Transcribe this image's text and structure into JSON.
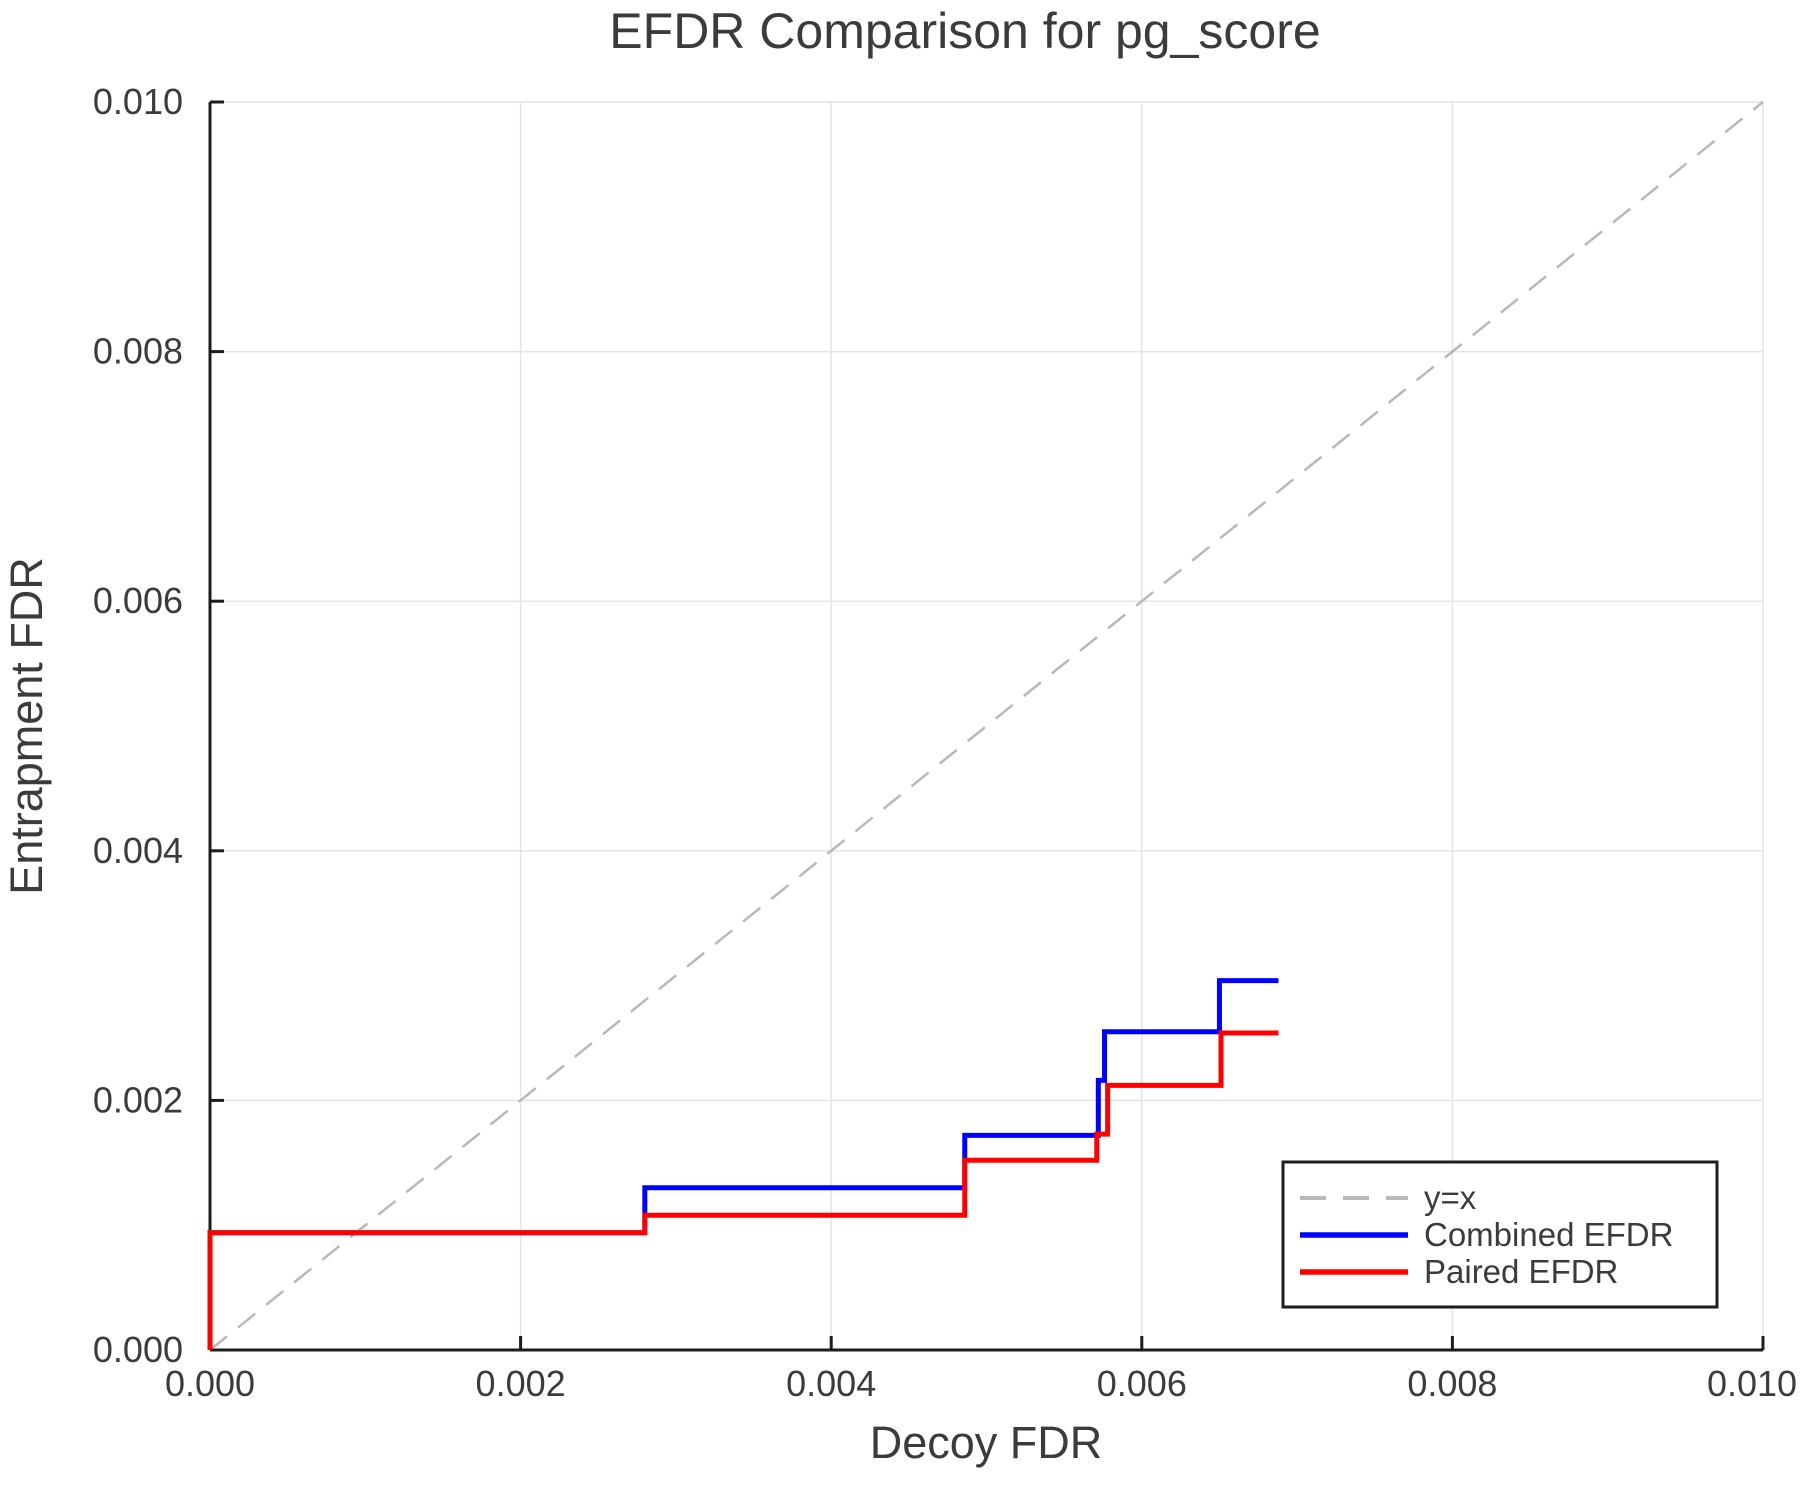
{
  "chart_data": {
    "type": "line",
    "title": "EFDR Comparison for pg_score",
    "xlabel": "Decoy FDR",
    "ylabel": "Entrapment FDR",
    "xlim": [
      0.0,
      0.01
    ],
    "ylim": [
      0.0,
      0.01
    ],
    "grid": true,
    "legend_position": "lower right",
    "xticks": [
      0.0,
      0.002,
      0.004,
      0.006,
      0.008,
      0.01
    ],
    "xtick_labels": [
      "0.000",
      "0.002",
      "0.004",
      "0.006",
      "0.008",
      "0.010"
    ],
    "yticks": [
      0.0,
      0.002,
      0.004,
      0.006,
      0.008,
      0.01
    ],
    "ytick_labels": [
      "0.000",
      "0.002",
      "0.004",
      "0.006",
      "0.008",
      "0.010"
    ],
    "series": [
      {
        "name": "y=x",
        "style": "dashed",
        "color": "#b8b8b8",
        "x": [
          0.0,
          0.01
        ],
        "y": [
          0.0,
          0.01
        ]
      },
      {
        "name": "Combined EFDR",
        "style": "solid",
        "color": "#0000ff",
        "x": [
          0.0,
          0.0,
          0.0028,
          0.0028,
          0.00486,
          0.00486,
          0.00572,
          0.00572,
          0.00576,
          0.00576,
          0.0065,
          0.0065,
          0.00688
        ],
        "y": [
          0.0,
          0.00094,
          0.00094,
          0.0013,
          0.0013,
          0.00172,
          0.00172,
          0.00216,
          0.00216,
          0.00255,
          0.00255,
          0.00296,
          0.00296
        ]
      },
      {
        "name": "Paired EFDR",
        "style": "solid",
        "color": "#ff0000",
        "x": [
          0.0,
          0.0,
          0.0028,
          0.0028,
          0.00486,
          0.00486,
          0.00571,
          0.00571,
          0.00578,
          0.00578,
          0.00651,
          0.00651,
          0.00688
        ],
        "y": [
          0.0,
          0.00094,
          0.00094,
          0.00108,
          0.00108,
          0.00152,
          0.00152,
          0.00173,
          0.00173,
          0.00212,
          0.00212,
          0.00254,
          0.00254
        ]
      }
    ],
    "colors": {
      "text": "#3b3b3b",
      "spine": "#1c1c1c",
      "grid": "#e4e4e4",
      "diagonal": "#b8b8b8",
      "combined": "#0000ff",
      "paired": "#ff0000",
      "background": "#ffffff"
    }
  }
}
